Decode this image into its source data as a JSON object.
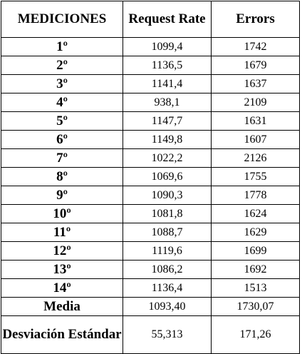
{
  "table": {
    "headers": [
      "MEDICIONES",
      "Request Rate",
      "Errors"
    ],
    "rows": [
      {
        "label": "1º",
        "request_rate": "1099,4",
        "errors": "1742"
      },
      {
        "label": "2º",
        "request_rate": "1136,5",
        "errors": "1679"
      },
      {
        "label": "3º",
        "request_rate": "1141,4",
        "errors": "1637"
      },
      {
        "label": "4º",
        "request_rate": "938,1",
        "errors": "2109"
      },
      {
        "label": "5º",
        "request_rate": "1147,7",
        "errors": "1631"
      },
      {
        "label": "6º",
        "request_rate": "1149,8",
        "errors": "1607"
      },
      {
        "label": "7º",
        "request_rate": "1022,2",
        "errors": "2126"
      },
      {
        "label": "8º",
        "request_rate": "1069,6",
        "errors": "1755"
      },
      {
        "label": "9º",
        "request_rate": "1090,3",
        "errors": "1778"
      },
      {
        "label": "10º",
        "request_rate": "1081,8",
        "errors": "1624"
      },
      {
        "label": "11º",
        "request_rate": "1088,7",
        "errors": "1629"
      },
      {
        "label": "12º",
        "request_rate": "1119,6",
        "errors": "1699"
      },
      {
        "label": "13º",
        "request_rate": "1086,2",
        "errors": "1692"
      },
      {
        "label": "14º",
        "request_rate": "1136,4",
        "errors": "1513"
      }
    ],
    "media": {
      "label": "Media",
      "request_rate": "1093,40",
      "errors": "1730,07"
    },
    "std_dev": {
      "label": "Desviación Estándar",
      "request_rate": "55,313",
      "errors": "171,26"
    }
  }
}
